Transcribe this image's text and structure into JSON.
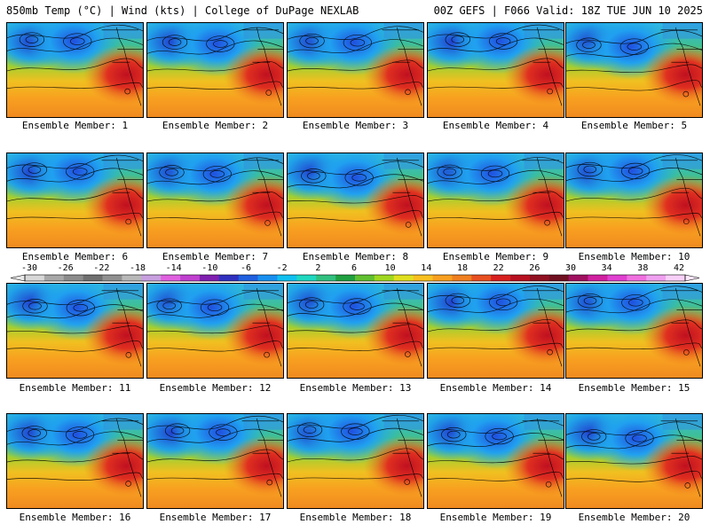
{
  "header": {
    "left_title": "850mb Temp (°C) | Wind (kts) | College of DuPage NEXLAB",
    "right_title": "00Z GEFS | F066 Valid: 18Z TUE JUN 10 2025"
  },
  "colorbar": {
    "ticks": [
      "-30",
      "-26",
      "-22",
      "-18",
      "-14",
      "-10",
      "-6",
      "-2",
      "2",
      "6",
      "10",
      "14",
      "18",
      "22",
      "26",
      "30",
      "34",
      "38",
      "42"
    ],
    "colors": [
      "#d8d8d8",
      "#a8a8a8",
      "#8c8c8c",
      "#707070",
      "#909090",
      "#b8b8b8",
      "#c8a0e0",
      "#e060e0",
      "#c040d0",
      "#8020b0",
      "#3030c0",
      "#2060e0",
      "#1890f0",
      "#10c0f0",
      "#20d8c0",
      "#30c080",
      "#20a040",
      "#60c030",
      "#a0d820",
      "#e0e020",
      "#f8c020",
      "#f8a020",
      "#f08020",
      "#e85020",
      "#d82020",
      "#b81020",
      "#901020",
      "#701020",
      "#a01060",
      "#d020a0",
      "#e040d0",
      "#f070e0",
      "#f0a0f0",
      "#f8d0f8"
    ]
  },
  "panels": [
    {
      "label": "Ensemble Member: 1"
    },
    {
      "label": "Ensemble Member: 2"
    },
    {
      "label": "Ensemble Member: 3"
    },
    {
      "label": "Ensemble Member: 4"
    },
    {
      "label": "Ensemble Member: 5"
    },
    {
      "label": "Ensemble Member: 6"
    },
    {
      "label": "Ensemble Member: 7"
    },
    {
      "label": "Ensemble Member: 8"
    },
    {
      "label": "Ensemble Member: 9"
    },
    {
      "label": "Ensemble Member: 10"
    },
    {
      "label": "Ensemble Member: 11"
    },
    {
      "label": "Ensemble Member: 12"
    },
    {
      "label": "Ensemble Member: 13"
    },
    {
      "label": "Ensemble Member: 14"
    },
    {
      "label": "Ensemble Member: 15"
    },
    {
      "label": "Ensemble Member: 16"
    },
    {
      "label": "Ensemble Member: 17"
    },
    {
      "label": "Ensemble Member: 18"
    },
    {
      "label": "Ensemble Member: 19"
    },
    {
      "label": "Ensemble Member: 20"
    }
  ]
}
